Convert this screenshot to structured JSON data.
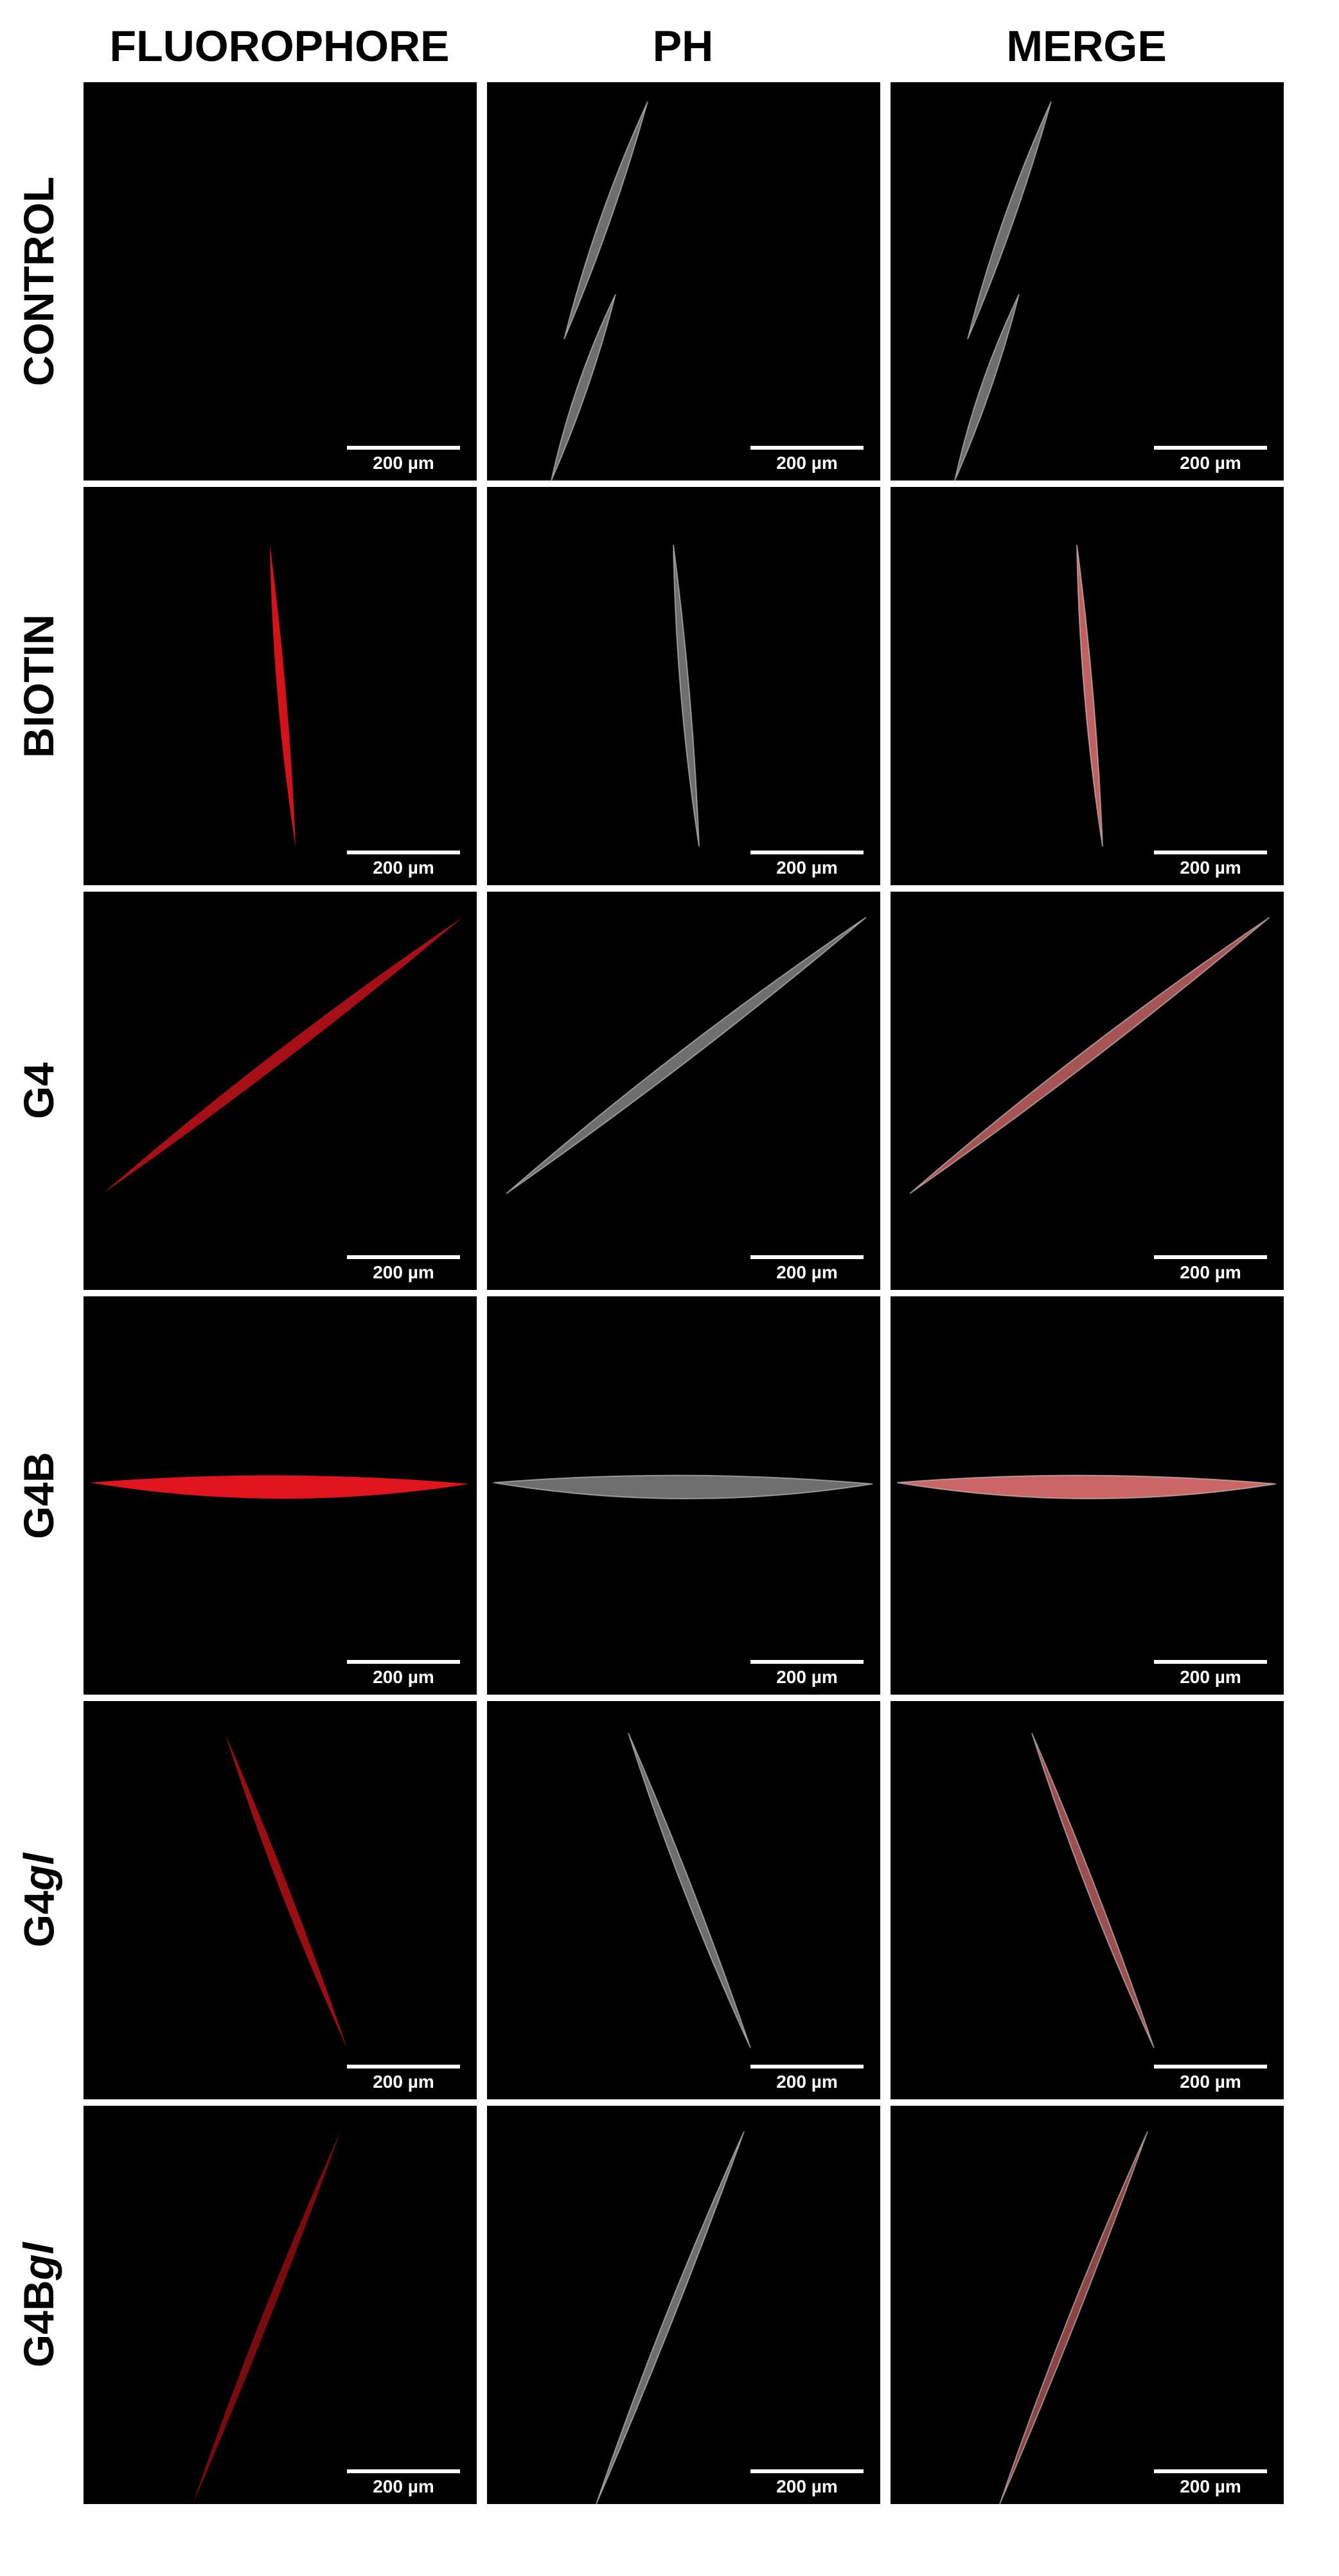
{
  "columns": [
    "FLUOROPHORE",
    "PH",
    "MERGE"
  ],
  "rows": [
    {
      "label": "CONTROL",
      "fluor_intensity": 0
    },
    {
      "label": "BIOTIN",
      "fluor_intensity": 0.9
    },
    {
      "label": "G4",
      "fluor_intensity": 0.6
    },
    {
      "label": "G4B",
      "fluor_intensity": 1.0
    },
    {
      "label_prefix": "G4",
      "label_italic": "gl",
      "label": "G4gl",
      "fluor_intensity": 0.5
    },
    {
      "label_prefix": "G4B",
      "label_italic": "gl",
      "label": "G4Bgl",
      "fluor_intensity": 0.3
    }
  ],
  "scale_bar_label": "200 µm",
  "colors": {
    "background": "#000000",
    "fluorophore": "#e0141c",
    "phase_contrast": "#c8c8c8",
    "merge": "#e07070"
  }
}
